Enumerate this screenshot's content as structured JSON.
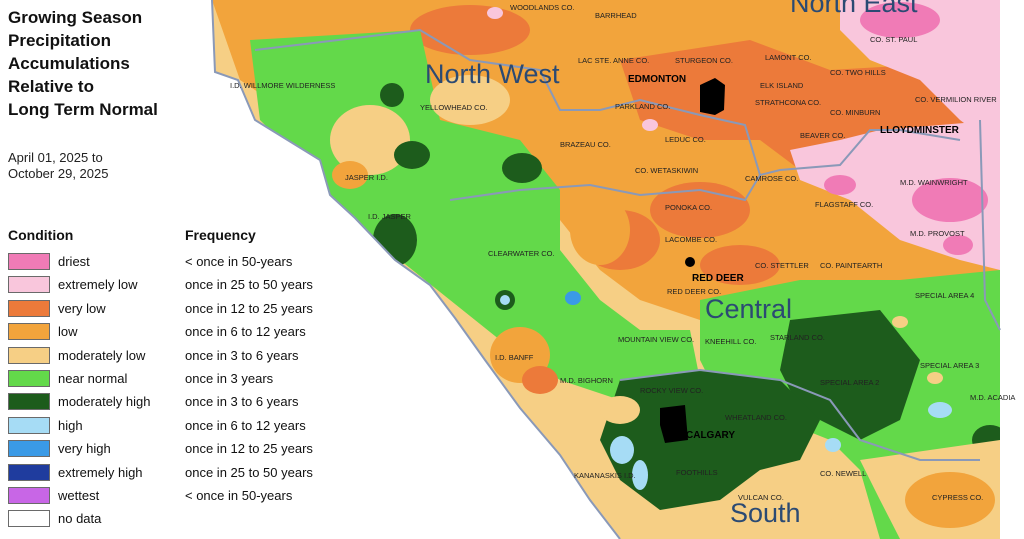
{
  "title": "Growing Season\nPrecipitation\nAccumulations\nRelative to\nLong Term Normal",
  "date_range": "April 01, 2025 to\nOctober 29, 2025",
  "legend": {
    "condition_header": "Condition",
    "frequency_header": "Frequency",
    "items": [
      {
        "condition": "driest",
        "frequency": "< once in 50-years",
        "color": "#f07bb6"
      },
      {
        "condition": "extremely low",
        "frequency": "once in 25 to 50 years",
        "color": "#f9c6dc"
      },
      {
        "condition": "very low",
        "frequency": "once in 12 to 25 years",
        "color": "#ec7a3a"
      },
      {
        "condition": "low",
        "frequency": "once in 6 to 12 years",
        "color": "#f2a43c"
      },
      {
        "condition": "moderately low",
        "frequency": "once in 3 to 6 years",
        "color": "#f6cf85"
      },
      {
        "condition": "near normal",
        "frequency": "once in 3 years",
        "color": "#63d94a"
      },
      {
        "condition": "moderately high",
        "frequency": "once in 3 to 6 years",
        "color": "#1d5c1c"
      },
      {
        "condition": "high",
        "frequency": "once in 6 to 12 years",
        "color": "#a6dcf5"
      },
      {
        "condition": "very high",
        "frequency": "once in 12 to 25 years",
        "color": "#3a9ae6"
      },
      {
        "condition": "extremely high",
        "frequency": "once in 25 to 50 years",
        "color": "#1f3c9e"
      },
      {
        "condition": "wettest",
        "frequency": "< once in 50-years",
        "color": "#c866e6"
      },
      {
        "condition": "no data",
        "frequency": "",
        "color": "#ffffff"
      }
    ]
  },
  "regions": [
    "North East",
    "North West",
    "Central",
    "South"
  ],
  "cities": [
    "EDMONTON",
    "RED DEER",
    "CALGARY",
    "LLOYDMINSTER"
  ],
  "counties": [
    "WOODLANDS CO.",
    "BARRHEAD",
    "CO. ST. PAUL",
    "LAC STE. ANNE CO.",
    "STURGEON CO.",
    "LAMONT CO.",
    "CO. TWO HILLS",
    "I.D. WILLMORE WILDERNESS",
    "YELLOWHEAD CO.",
    "ELK ISLAND",
    "STRATHCONA CO.",
    "PARKLAND CO.",
    "CO. MINBURN",
    "CO. VERMILION RIVER",
    "BEAVER CO.",
    "LEDUC CO.",
    "BRAZEAU CO.",
    "CO. WETASKIWIN",
    "CAMROSE CO.",
    "M.D. WAINWRIGHT",
    "JASPER I.D.",
    "FLAGSTAFF CO.",
    "PONOKA CO.",
    "I.D. JASPER",
    "M.D. PROVOST",
    "LACOMBE CO.",
    "CLEARWATER CO.",
    "CO. STETTLER",
    "CO. PAINTEARTH",
    "RED DEER CO.",
    "SPECIAL AREA 4",
    "STARLAND CO.",
    "MOUNTAIN VIEW CO.",
    "KNEEHILL CO.",
    "I.D. BANFF",
    "SPECIAL AREA 3",
    "M.D. BIGHORN",
    "SPECIAL AREA 2",
    "ROCKY VIEW CO.",
    "M.D. ACADIA",
    "WHEATLAND CO.",
    "KANANASKIS I.D.",
    "FOOTHILLS",
    "CO. NEWELL",
    "VULCAN CO.",
    "CYPRESS CO."
  ],
  "colors": {
    "boundary": "#8a99b8",
    "city_fill": "#000000"
  }
}
